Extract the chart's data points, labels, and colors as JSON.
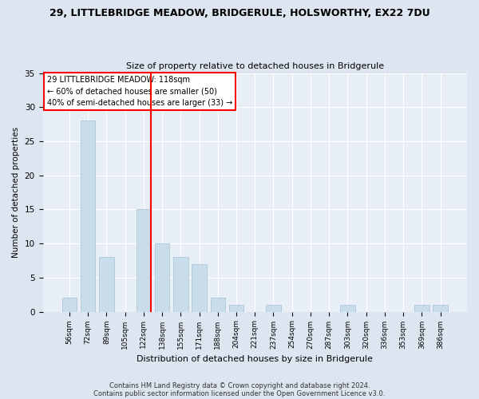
{
  "title": "29, LITTLEBRIDGE MEADOW, BRIDGERULE, HOLSWORTHY, EX22 7DU",
  "subtitle": "Size of property relative to detached houses in Bridgerule",
  "xlabel": "Distribution of detached houses by size in Bridgerule",
  "ylabel": "Number of detached properties",
  "categories": [
    "56sqm",
    "72sqm",
    "89sqm",
    "105sqm",
    "122sqm",
    "138sqm",
    "155sqm",
    "171sqm",
    "188sqm",
    "204sqm",
    "221sqm",
    "237sqm",
    "254sqm",
    "270sqm",
    "287sqm",
    "303sqm",
    "320sqm",
    "336sqm",
    "353sqm",
    "369sqm",
    "386sqm"
  ],
  "values": [
    2,
    28,
    8,
    0,
    15,
    10,
    8,
    7,
    2,
    1,
    0,
    1,
    0,
    0,
    0,
    1,
    0,
    0,
    0,
    1,
    1
  ],
  "bar_color": "#c9dcea",
  "bar_edgecolor": "#aec8dc",
  "vline_x_index": 4,
  "vline_color": "red",
  "ylim": [
    0,
    35
  ],
  "yticks": [
    0,
    5,
    10,
    15,
    20,
    25,
    30,
    35
  ],
  "annotation_text": "29 LITTLEBRIDGE MEADOW: 118sqm\n← 60% of detached houses are smaller (50)\n40% of semi-detached houses are larger (33) →",
  "annotation_box_color": "white",
  "annotation_box_edgecolor": "red",
  "footnote1": "Contains HM Land Registry data © Crown copyright and database right 2024.",
  "footnote2": "Contains public sector information licensed under the Open Government Licence v3.0.",
  "background_color": "#dde6f0",
  "plot_background_color": "#e8eef6"
}
